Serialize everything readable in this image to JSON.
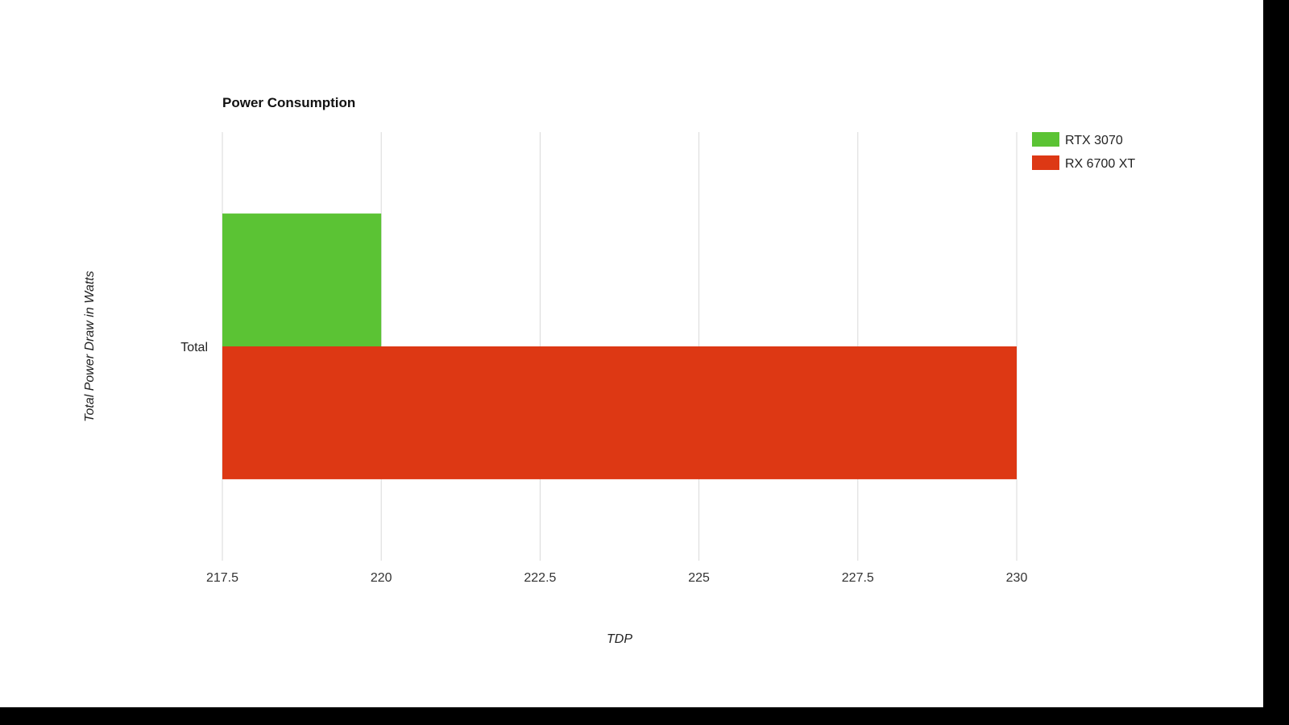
{
  "chart_data": {
    "type": "bar",
    "orientation": "horizontal",
    "title": "Power Consumption",
    "xlabel": "TDP",
    "ylabel": "Total Power Draw in Watts",
    "categories": [
      "Total"
    ],
    "series": [
      {
        "name": "RTX 3070",
        "values": [
          220
        ],
        "color": "#5bc334"
      },
      {
        "name": "RX 6700 XT",
        "values": [
          230
        ],
        "color": "#dd3814"
      }
    ],
    "xlim": [
      217.5,
      230
    ],
    "xticks": [
      "217.5",
      "220",
      "222.5",
      "225",
      "227.5",
      "230"
    ],
    "grid": true,
    "legend": "top-right"
  }
}
